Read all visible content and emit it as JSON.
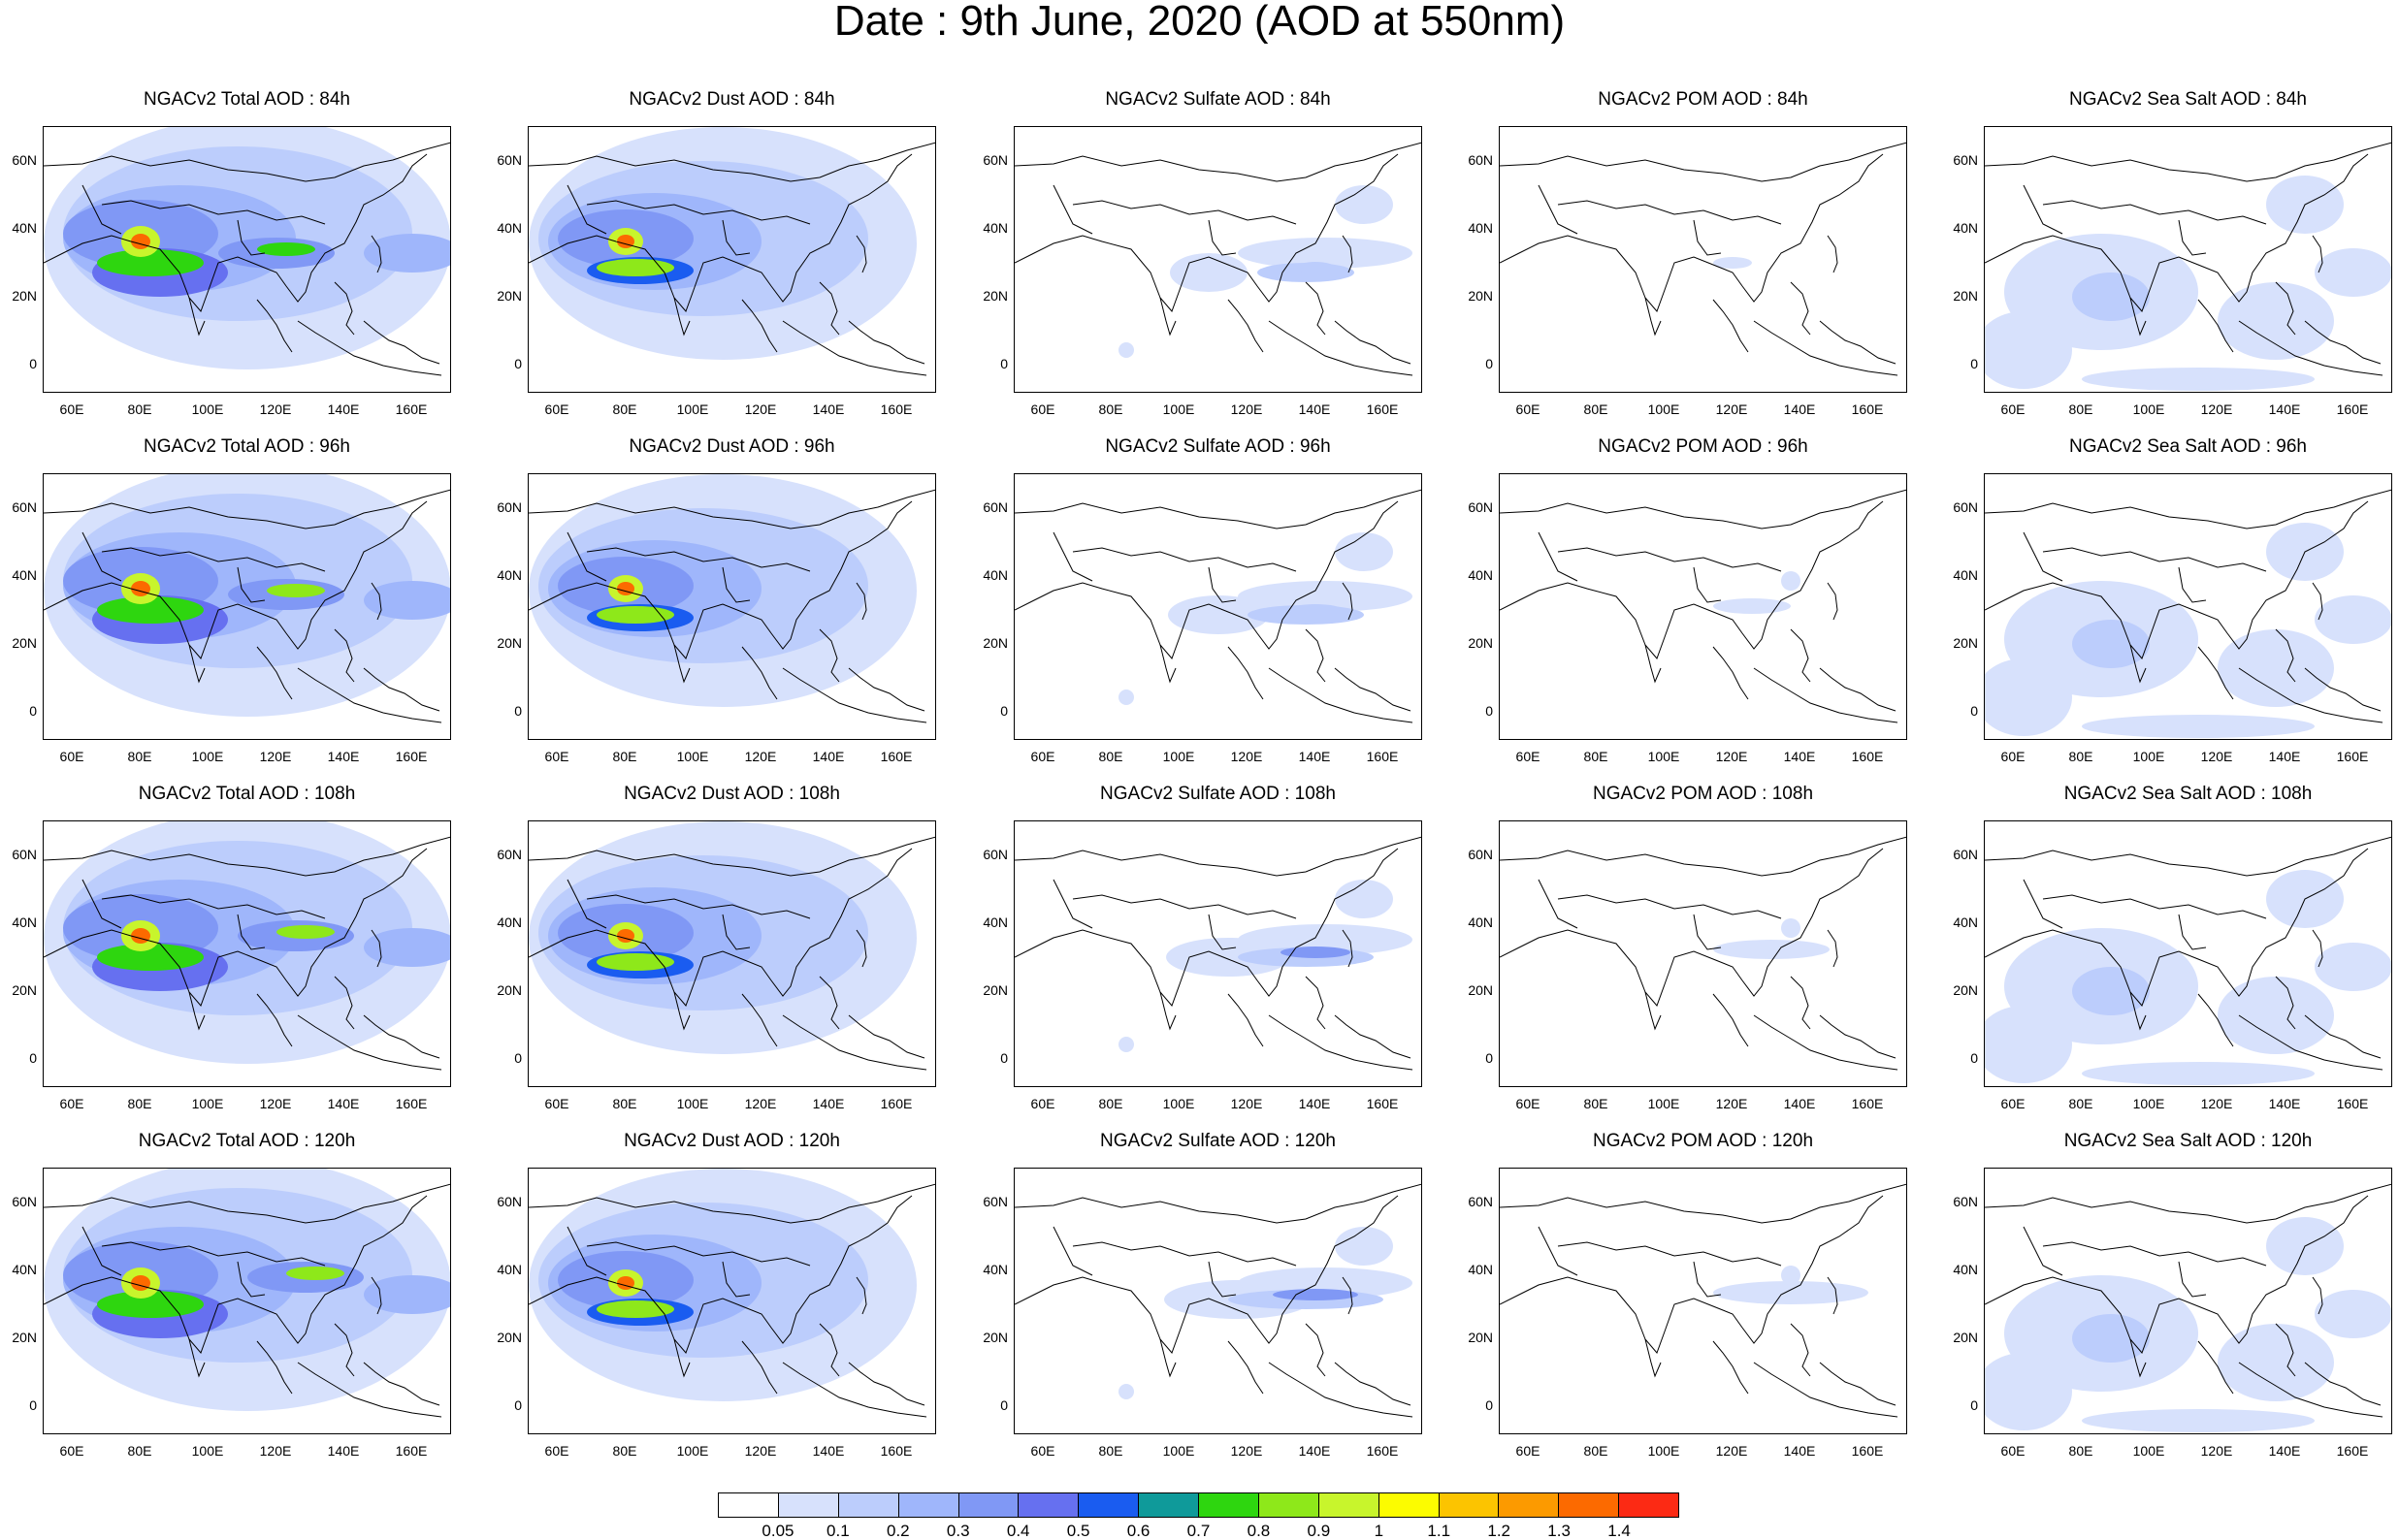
{
  "title": "Date : 9th June, 2020 (AOD at 550nm)",
  "panel_titles": [
    [
      "NGACv2 Total AOD : 84h",
      "NGACv2 Dust AOD : 84h",
      "NGACv2 Sulfate AOD : 84h",
      "NGACv2 POM AOD : 84h",
      "NGACv2 Sea Salt AOD : 84h"
    ],
    [
      "NGACv2 Total AOD : 96h",
      "NGACv2 Dust AOD : 96h",
      "NGACv2 Sulfate AOD : 96h",
      "NGACv2 POM AOD : 96h",
      "NGACv2 Sea Salt AOD : 96h"
    ],
    [
      "NGACv2 Total AOD : 108h",
      "NGACv2 Dust AOD : 108h",
      "NGACv2 Sulfate AOD : 108h",
      "NGACv2 POM AOD : 108h",
      "NGACv2 Sea Salt AOD : 108h"
    ],
    [
      "NGACv2 Total AOD : 120h",
      "NGACv2 Dust AOD : 120h",
      "NGACv2 Sulfate AOD : 120h",
      "NGACv2 POM AOD : 120h",
      "NGACv2 Sea Salt  AOD : 120h"
    ]
  ],
  "lat_ticks": [
    "60N",
    "40N",
    "20N",
    "0"
  ],
  "lon_ticks": [
    "60E",
    "80E",
    "100E",
    "120E",
    "140E",
    "160E"
  ],
  "colorbar": {
    "labels": [
      "0.05",
      "0.1",
      "0.2",
      "0.3",
      "0.4",
      "0.5",
      "0.6",
      "0.7",
      "0.8",
      "0.9",
      "1",
      "1.1",
      "1.2",
      "1.3",
      "1.4"
    ],
    "colors": [
      "#ffffff",
      "#d7e1fc",
      "#bccdfc",
      "#9fb6fb",
      "#8098f5",
      "#6670f0",
      "#1a5cf0",
      "#0f9a9a",
      "#2ed60f",
      "#8ee81a",
      "#c8f52c",
      "#fcfc00",
      "#fcc400",
      "#fc9a00",
      "#fc6a00",
      "#fc2a14"
    ]
  }
}
